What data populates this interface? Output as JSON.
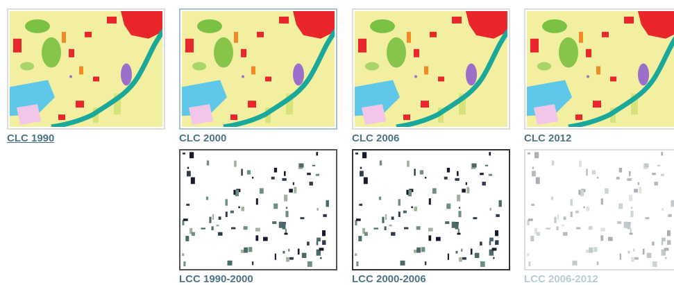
{
  "clc_maps": [
    "CLC 1990",
    "CLC 2000",
    "CLC 2006",
    "CLC 2012"
  ],
  "lcc_maps": [
    "LCC 1990-2000",
    "LCC 2000-2006",
    "LCC 2006-2012"
  ]
}
